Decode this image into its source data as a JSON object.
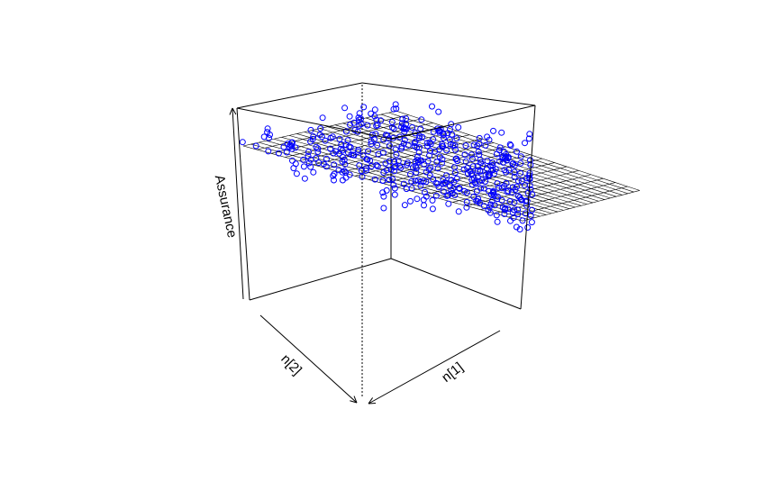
{
  "chart_data": {
    "type": "scatter3d",
    "title": "",
    "xlabel": "n[1]",
    "ylabel": "n[2]",
    "zlabel": "Assurance",
    "grid": false,
    "ticks_shown": false,
    "surface": "fitted regression plane (mesh), decreasing with n[1]",
    "point_color": "#0000ff",
    "point_style": "open circle",
    "surface_color": "#000000",
    "note_values": "axes show no tick values; data expressed in normalized units 0-1",
    "surface_plane": {
      "intercept": 0.74,
      "slope_n1": -0.28,
      "slope_n2": 0.02
    },
    "points_n": 600
  }
}
